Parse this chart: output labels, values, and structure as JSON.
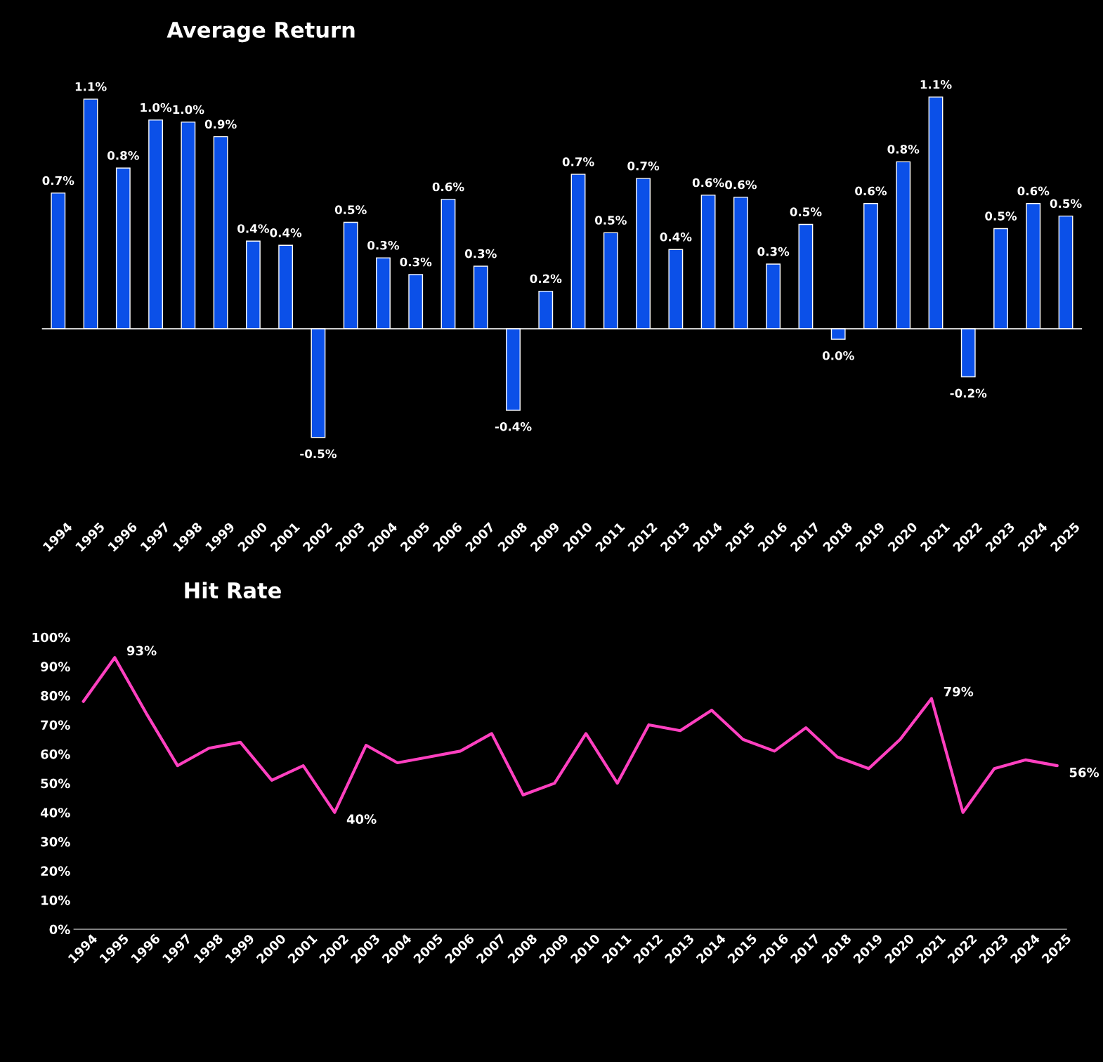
{
  "chart_data": [
    {
      "type": "bar",
      "title": "Average Return",
      "categories": [
        "1994",
        "1995",
        "1996",
        "1997",
        "1998",
        "1999",
        "2000",
        "2001",
        "2002",
        "2003",
        "2004",
        "2005",
        "2006",
        "2007",
        "2008",
        "2009",
        "2010",
        "2011",
        "2012",
        "2013",
        "2014",
        "2015",
        "2016",
        "2017",
        "2018",
        "2019",
        "2020",
        "2021",
        "2022",
        "2023",
        "2024",
        "2025"
      ],
      "values": [
        0.65,
        1.1,
        0.77,
        1.0,
        0.99,
        0.92,
        0.42,
        0.4,
        -0.52,
        0.51,
        0.34,
        0.26,
        0.62,
        0.3,
        -0.39,
        0.18,
        0.74,
        0.46,
        0.72,
        0.38,
        0.64,
        0.63,
        0.31,
        0.5,
        -0.05,
        0.6,
        0.8,
        1.11,
        -0.23,
        0.48,
        0.6,
        0.54
      ],
      "value_labels": [
        "0.7%",
        "1.1%",
        "0.8%",
        "1.0%",
        "1.0%",
        "0.9%",
        "0.4%",
        "0.4%",
        "-0.5%",
        "0.5%",
        "0.3%",
        "0.3%",
        "0.6%",
        "0.3%",
        "-0.4%",
        "0.2%",
        "0.7%",
        "0.5%",
        "0.7%",
        "0.4%",
        "0.6%",
        "0.6%",
        "0.3%",
        "0.5%",
        "0.0%",
        "0.6%",
        "0.8%",
        "1.1%",
        "-0.2%",
        "0.5%",
        "0.6%",
        "0.5%"
      ],
      "color": "#0b50e8",
      "grid": false,
      "legend": false
    },
    {
      "type": "line",
      "title": "Hit Rate",
      "categories": [
        "1994",
        "1995",
        "1996",
        "1997",
        "1998",
        "1999",
        "2000",
        "2001",
        "2002",
        "2003",
        "2004",
        "2005",
        "2006",
        "2007",
        "2008",
        "2009",
        "2010",
        "2011",
        "2012",
        "2013",
        "2014",
        "2015",
        "2016",
        "2017",
        "2018",
        "2019",
        "2020",
        "2021",
        "2022",
        "2023",
        "2024",
        "2025"
      ],
      "values": [
        78,
        93,
        74,
        56,
        62,
        64,
        51,
        56,
        40,
        63,
        57,
        59,
        61,
        67,
        46,
        50,
        67,
        50,
        70,
        68,
        75,
        65,
        61,
        69,
        59,
        55,
        65,
        79,
        40,
        55,
        58,
        56
      ],
      "color": "#ff40c0",
      "ylim": [
        0,
        100
      ],
      "yticks": [
        {
          "value": 0,
          "label": "0%"
        },
        {
          "value": 10,
          "label": "10%"
        },
        {
          "value": 20,
          "label": "20%"
        },
        {
          "value": 30,
          "label": "30%"
        },
        {
          "value": 40,
          "label": "40%"
        },
        {
          "value": 50,
          "label": "50%"
        },
        {
          "value": 60,
          "label": "60%"
        },
        {
          "value": 70,
          "label": "70%"
        },
        {
          "value": 80,
          "label": "80%"
        },
        {
          "value": 90,
          "label": "90%"
        },
        {
          "value": 100,
          "label": "100%"
        }
      ],
      "value_labels": [
        null,
        "93%",
        null,
        null,
        null,
        null,
        null,
        null,
        "40%",
        null,
        null,
        null,
        null,
        null,
        null,
        null,
        null,
        null,
        null,
        null,
        null,
        null,
        null,
        null,
        null,
        null,
        null,
        "79%",
        null,
        null,
        null,
        "56%"
      ],
      "grid": false,
      "legend": false,
      "marker": "none"
    }
  ]
}
